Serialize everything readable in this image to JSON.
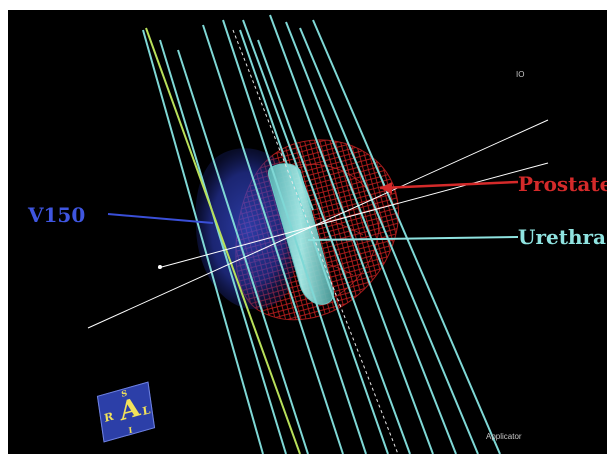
{
  "labels": {
    "prostate": "Prostate",
    "urethra": "Urethra",
    "v150": "V150",
    "applicator": "Applicator",
    "corner_mark": "IO"
  },
  "orientation_cube": {
    "main_letter": "A",
    "left_letter": "R",
    "right_letter": "L",
    "top_letter": "S",
    "bottom_letter": "I"
  },
  "colors": {
    "background": "#000000",
    "prostate": "#d42a2a",
    "urethra": "#8fe3e0",
    "v150": "#3a4fd8",
    "needles": "#7fd8d6",
    "reference_lines": "#ffffff",
    "highlight_needle": "#b8e05a"
  }
}
